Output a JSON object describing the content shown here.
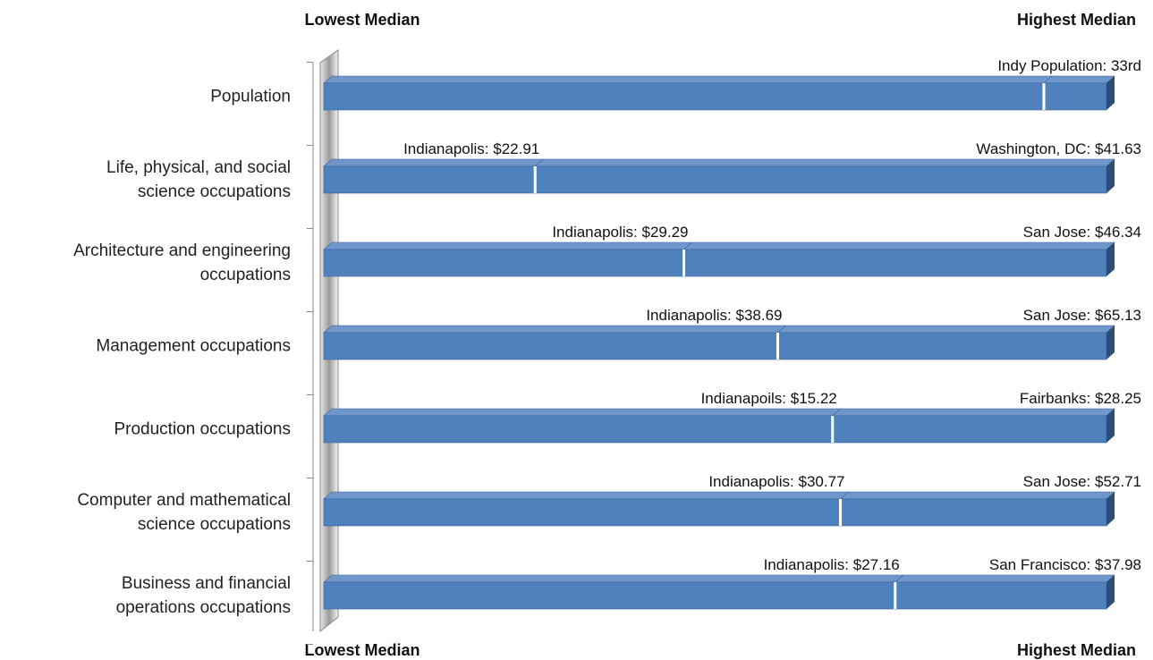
{
  "chart_data": {
    "type": "bar",
    "orientation": "horizontal",
    "stacked": true,
    "annotations": [
      "Lowest Median",
      "Highest Median",
      "Lowest Median",
      "Highest Median"
    ],
    "categories": [
      "Population",
      "Life, physical, and social\nscience occupations",
      "Architecture and engineering\noccupations",
      "Management occupations",
      "Production occupations",
      "Computer and mathematical\nscience occupations",
      "Business and financial\noperations occupations"
    ],
    "xlim": [
      0,
      100
    ],
    "series": [
      {
        "color": "#4f81bd",
        "values": [
          92,
          27,
          46,
          58,
          65,
          66,
          73
        ]
      },
      {
        "color": "#4f81bd",
        "values": [
          8,
          73,
          54,
          42,
          35,
          34,
          27
        ]
      }
    ],
    "inner_labels": [
      null,
      "Indianapolis: $22.91",
      "Indianapolis: $29.29",
      "Indianapolis: $38.69",
      "Indianapoils: $15.22",
      "Indianapolis: $30.77",
      "Indianapolis: $27.16"
    ],
    "end_labels": [
      "Indy Population: 33rd",
      "Washington, DC: $41.63",
      "San Jose: $46.34",
      "San Jose: $65.13",
      "Fairbanks: $28.25",
      "San Jose: $52.71",
      "San Francisco: $37.98"
    ]
  }
}
